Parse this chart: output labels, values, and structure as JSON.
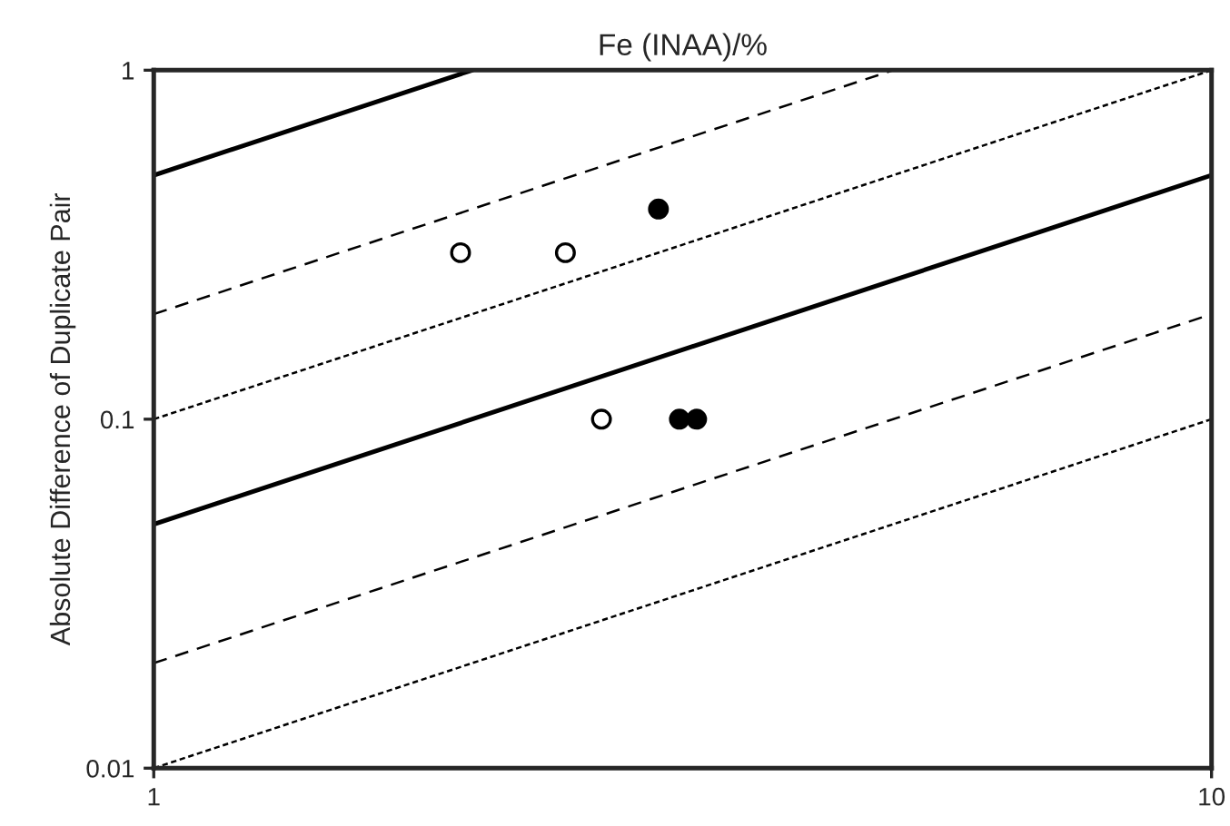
{
  "chart_data": {
    "type": "scatter",
    "title": "Fe (INAA)/%",
    "ylabel": "Absolute Difference of Duplicate Pair",
    "log": "xy",
    "xlim": [
      1,
      10
    ],
    "ylim": [
      0.01,
      1
    ],
    "xticks": [
      1,
      10
    ],
    "yticks": [
      0.01,
      0.1,
      1
    ],
    "grid": false,
    "series": [
      {
        "type": "line",
        "color": "#000000",
        "line_style": "solid",
        "x": [
          1,
          2
        ],
        "values": [
          0.5,
          1
        ]
      },
      {
        "type": "line",
        "color": "#000000",
        "line_style": "dashed",
        "x": [
          1,
          5
        ],
        "values": [
          0.2,
          1
        ]
      },
      {
        "type": "line",
        "color": "#000000",
        "line_style": "dotted",
        "x": [
          1,
          10
        ],
        "values": [
          0.1,
          1
        ]
      },
      {
        "type": "line",
        "color": "#000000",
        "line_style": "solid",
        "x": [
          1,
          10
        ],
        "values": [
          0.05,
          0.5
        ]
      },
      {
        "type": "line",
        "color": "#000000",
        "line_style": "dashed",
        "x": [
          1,
          10
        ],
        "values": [
          0.02,
          0.2
        ]
      },
      {
        "type": "line",
        "color": "#000000",
        "line_style": "dotted",
        "x": [
          1,
          10
        ],
        "values": [
          0.01,
          0.1
        ]
      },
      {
        "marker": "circle",
        "color": "#ffffff",
        "x": [
          1.95,
          2.45,
          2.65
        ],
        "values": [
          0.3,
          0.3,
          0.1
        ]
      },
      {
        "marker": "circle",
        "color": "#000000",
        "x": [
          3.0,
          3.14,
          3.26
        ],
        "values": [
          0.4,
          0.1,
          0.1
        ]
      }
    ]
  }
}
